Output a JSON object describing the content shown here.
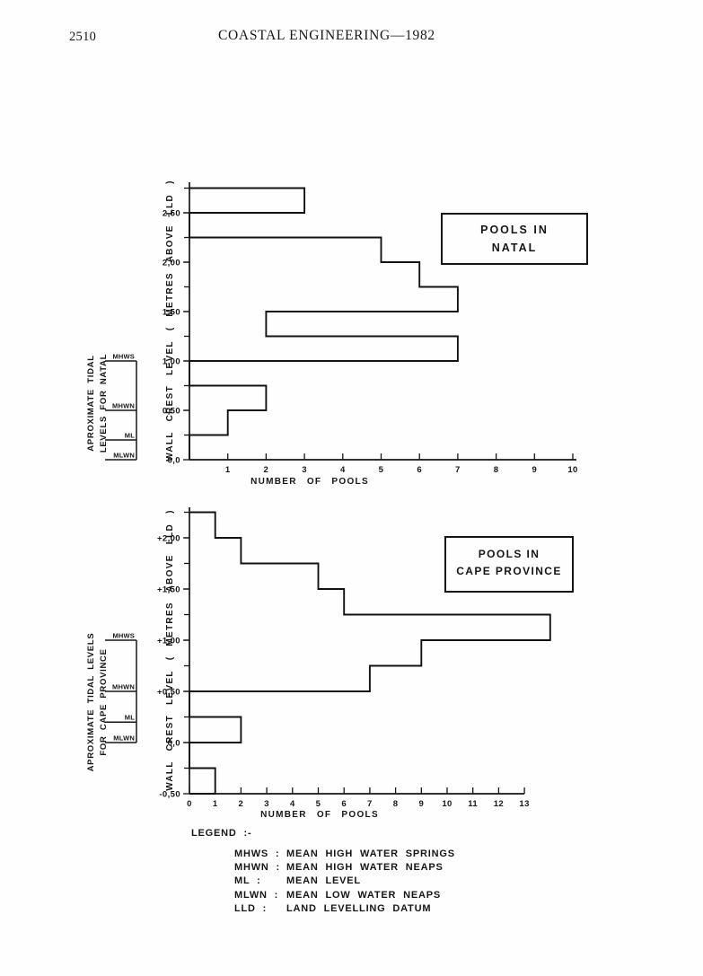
{
  "colors": {
    "ink": "#161616",
    "paper": "#fffefe"
  },
  "page": {
    "number": "2510",
    "title": "COASTAL ENGINEERING—1982"
  },
  "legend": {
    "title": "LEGEND :-",
    "entries": [
      {
        "term": "MHWS :",
        "definition": "MEAN HIGH WATER SPRINGS"
      },
      {
        "term": "MHWN :",
        "definition": "MEAN HIGH WATER NEAPS"
      },
      {
        "term": "ML :",
        "definition": "MEAN LEVEL"
      },
      {
        "term": "MLWN :",
        "definition": "MEAN LOW WATER NEAPS"
      },
      {
        "term": "LLD :",
        "definition": "LAND LEVELLING DATUM"
      }
    ]
  },
  "chart_data": [
    {
      "id": "natal",
      "type": "bar",
      "orientation": "horizontal-step-histogram",
      "title": "POOLS IN NATAL",
      "title_lines": [
        "POOLS IN",
        "NATAL"
      ],
      "xlabel": "NUMBER OF POOLS",
      "ylabel": "WALL CREST LEVEL ( METRES ABOVE LLD )",
      "xlim": [
        0,
        10
      ],
      "ylim": [
        0,
        2.75
      ],
      "bin_width": 0.25,
      "bins": [
        {
          "from": 0.0,
          "to": 0.25,
          "count": 0
        },
        {
          "from": 0.25,
          "to": 0.5,
          "count": 1
        },
        {
          "from": 0.5,
          "to": 0.75,
          "count": 2
        },
        {
          "from": 0.75,
          "to": 1.0,
          "count": 0
        },
        {
          "from": 1.0,
          "to": 1.25,
          "count": 7
        },
        {
          "from": 1.25,
          "to": 1.5,
          "count": 2
        },
        {
          "from": 1.5,
          "to": 1.75,
          "count": 7
        },
        {
          "from": 1.75,
          "to": 2.0,
          "count": 6
        },
        {
          "from": 2.0,
          "to": 2.25,
          "count": 5
        },
        {
          "from": 2.25,
          "to": 2.5,
          "count": 0
        },
        {
          "from": 2.5,
          "to": 2.75,
          "count": 3
        }
      ],
      "x_ticks": [
        1,
        2,
        3,
        4,
        5,
        6,
        7,
        8,
        9,
        10
      ],
      "y_ticks": [
        {
          "level": 0.0,
          "label": "0,0"
        },
        {
          "level": 0.5,
          "label": "0,50"
        },
        {
          "level": 1.0,
          "label": "1,00"
        },
        {
          "level": 1.5,
          "label": "1,50"
        },
        {
          "level": 2.0,
          "label": "2,00"
        },
        {
          "level": 2.5,
          "label": "2,50"
        }
      ],
      "tidal_title_lines": [
        "APROXIMATE TIDAL",
        "LEVELS FOR NATAL"
      ],
      "tidal_levels": [
        {
          "name": "MHWS",
          "level": 1.0
        },
        {
          "name": "MHWN",
          "level": 0.5
        },
        {
          "name": "ML",
          "level": 0.2
        },
        {
          "name": "MLWN",
          "level": 0.0
        }
      ]
    },
    {
      "id": "cape-province",
      "type": "bar",
      "orientation": "horizontal-step-histogram",
      "title": "POOLS IN CAPE PROVINCE",
      "title_lines": [
        "POOLS IN",
        "CAPE PROVINCE"
      ],
      "xlabel": "NUMBER OF POOLS",
      "ylabel": "WALL CREST LEVEL ( METRES ABOVE LLD )",
      "xlim": [
        0,
        13
      ],
      "ylim": [
        -0.5,
        2.25
      ],
      "bin_width": 0.25,
      "bins": [
        {
          "from": -0.5,
          "to": -0.25,
          "count": 1
        },
        {
          "from": -0.25,
          "to": 0.0,
          "count": 0
        },
        {
          "from": 0.0,
          "to": 0.25,
          "count": 2
        },
        {
          "from": 0.25,
          "to": 0.5,
          "count": 0
        },
        {
          "from": 0.5,
          "to": 0.75,
          "count": 7
        },
        {
          "from": 0.75,
          "to": 1.0,
          "count": 9
        },
        {
          "from": 1.0,
          "to": 1.25,
          "count": 14
        },
        {
          "from": 1.25,
          "to": 1.5,
          "count": 6
        },
        {
          "from": 1.5,
          "to": 1.75,
          "count": 5
        },
        {
          "from": 1.75,
          "to": 2.0,
          "count": 2
        },
        {
          "from": 2.0,
          "to": 2.25,
          "count": 1
        }
      ],
      "x_ticks": [
        0,
        1,
        2,
        3,
        4,
        5,
        6,
        7,
        8,
        9,
        10,
        11,
        12,
        13
      ],
      "y_ticks": [
        {
          "level": -0.5,
          "label": "-0,50"
        },
        {
          "level": 0.0,
          "label": "0,0"
        },
        {
          "level": 0.5,
          "label": "+0,50"
        },
        {
          "level": 1.0,
          "label": "+1,00"
        },
        {
          "level": 1.5,
          "label": "+1,50"
        },
        {
          "level": 2.0,
          "label": "+2,00"
        }
      ],
      "tidal_title_lines": [
        "APROXIMATE TIDAL LEVELS",
        "FOR CAPE PROVINCE"
      ],
      "tidal_levels": [
        {
          "name": "MHWS",
          "level": 1.0
        },
        {
          "name": "MHWN",
          "level": 0.5
        },
        {
          "name": "ML",
          "level": 0.2
        },
        {
          "name": "MLWN",
          "level": 0.0
        }
      ]
    }
  ]
}
